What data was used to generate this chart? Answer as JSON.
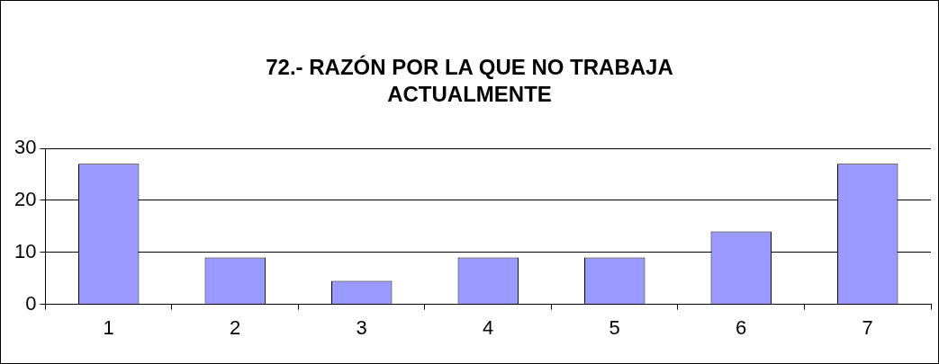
{
  "chart_data": {
    "type": "bar",
    "title": "72.- RAZÓN POR LA QUE NO TRABAJA ACTUALMENTE",
    "categories": [
      "1",
      "2",
      "3",
      "4",
      "5",
      "6",
      "7"
    ],
    "values": [
      27,
      9,
      4.5,
      9,
      9,
      14,
      27
    ],
    "color": "#9999ff",
    "ylim": [
      0,
      30
    ],
    "yticks": [
      0,
      10,
      20,
      30
    ],
    "grid": "y",
    "legend": false
  }
}
